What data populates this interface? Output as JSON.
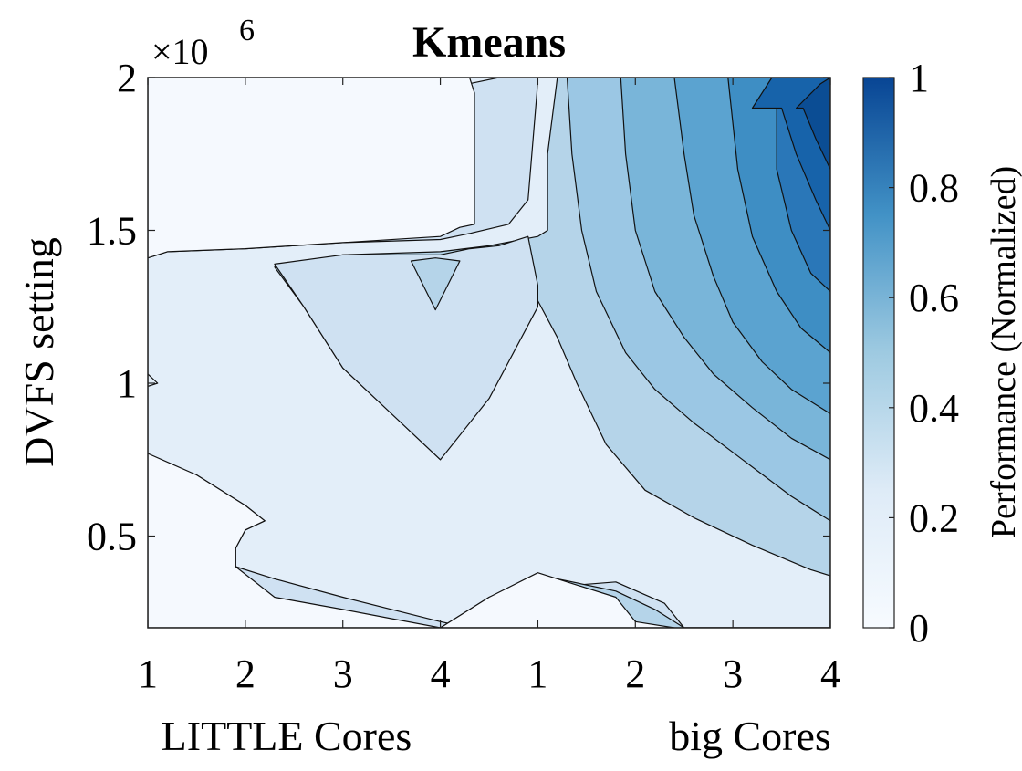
{
  "chart_data": {
    "type": "contour",
    "title": "Kmeans",
    "xlabel_left": "LITTLE Cores",
    "xlabel_right": "big Cores",
    "ylabel": "DVFS setting",
    "y_exponent": "×10",
    "y_exponent_power": "6",
    "xticks": [
      {
        "x": 0,
        "label": "1"
      },
      {
        "x": 1,
        "label": "2"
      },
      {
        "x": 2,
        "label": "3"
      },
      {
        "x": 3,
        "label": "4"
      },
      {
        "x": 4,
        "label": "1"
      },
      {
        "x": 5,
        "label": "2"
      },
      {
        "x": 6,
        "label": "3"
      },
      {
        "x": 7,
        "label": "4"
      }
    ],
    "xlim": [
      0,
      7
    ],
    "yticks": [
      {
        "y": 0.5,
        "label": "0.5"
      },
      {
        "y": 1.0,
        "label": "1"
      },
      {
        "y": 1.5,
        "label": "1.5"
      },
      {
        "y": 2.0,
        "label": "2"
      }
    ],
    "ylim": [
      0.2,
      2.0
    ],
    "colorbar": {
      "label": "Performance (Normalized)",
      "range": [
        0,
        1
      ],
      "ticks": [
        {
          "v": 0,
          "label": "0"
        },
        {
          "v": 0.2,
          "label": "0.2"
        },
        {
          "v": 0.4,
          "label": "0.4"
        },
        {
          "v": 0.6,
          "label": "0.6"
        },
        {
          "v": 0.8,
          "label": "0.8"
        },
        {
          "v": 1.0,
          "label": "1"
        }
      ],
      "colors": [
        "#f7fbff",
        "#deebf7",
        "#9ecae1",
        "#4292c6",
        "#084594"
      ]
    },
    "levels": [
      {
        "value": 0.0,
        "color": "#f5f9fe"
      },
      {
        "value": 0.1,
        "color": "#e3eef9"
      },
      {
        "value": 0.2,
        "color": "#cfe1f2"
      },
      {
        "value": 0.3,
        "color": "#b5d4e9"
      },
      {
        "value": 0.4,
        "color": "#9bc7e4"
      },
      {
        "value": 0.5,
        "color": "#79b5d9"
      },
      {
        "value": 0.6,
        "color": "#5ba3d0"
      },
      {
        "value": 0.7,
        "color": "#3e8ec4"
      },
      {
        "value": 0.8,
        "color": "#2a77b8"
      },
      {
        "value": 0.9,
        "color": "#1763aa"
      },
      {
        "value": 1.0,
        "color": "#0b4d94"
      }
    ],
    "regions": [
      {
        "level": 0.1,
        "points": [
          [
            0,
            2.0
          ],
          [
            3.3,
            2.0
          ],
          [
            3.5,
            2.0
          ],
          [
            3.8,
            2.0
          ],
          [
            4.3,
            2.0
          ],
          [
            7,
            2.0
          ],
          [
            7,
            0.2
          ],
          [
            0,
            0.2
          ]
        ]
      },
      {
        "level": 0.2,
        "points": [
          [
            0,
            1.41
          ],
          [
            0.2,
            1.43
          ],
          [
            1,
            1.44
          ],
          [
            2,
            1.46
          ],
          [
            3,
            1.47
          ],
          [
            3.3,
            1.49
          ],
          [
            3.7,
            1.52
          ],
          [
            3.9,
            1.6
          ],
          [
            3.99,
            1.95
          ],
          [
            4,
            2.0
          ],
          [
            7,
            2.0
          ],
          [
            7,
            0.2
          ],
          [
            0,
            0.2
          ],
          [
            0,
            0.75
          ],
          [
            0.5,
            0.7
          ],
          [
            1,
            0.6
          ],
          [
            1.2,
            0.55
          ],
          [
            1,
            0.52
          ],
          [
            0.9,
            0.46
          ],
          [
            0.9,
            0.4
          ],
          [
            1.3,
            0.36
          ],
          [
            2,
            0.3
          ],
          [
            3,
            0.22
          ],
          [
            3.3,
            0.2
          ],
          [
            3.5,
            0.26
          ],
          [
            4,
            0.33
          ],
          [
            4.8,
            0.35
          ],
          [
            5.3,
            0.28
          ],
          [
            5.5,
            0.2
          ],
          [
            7,
            0.2
          ],
          [
            7,
            2.0
          ],
          [
            4,
            2.0
          ],
          [
            3.99,
            2.0
          ],
          [
            3.6,
            2.0
          ],
          [
            3.3,
            1.98
          ],
          [
            0,
            1.98
          ]
        ]
      },
      {
        "level": 0.3,
        "points": [
          [
            4.0,
            2.0
          ],
          [
            7,
            2.0
          ],
          [
            7,
            0.2
          ],
          [
            5.5,
            0.2
          ],
          [
            5.2,
            0.26
          ],
          [
            4.8,
            0.32
          ],
          [
            4.2,
            0.36
          ],
          [
            3.5,
            0.3
          ],
          [
            3.0,
            0.2
          ],
          [
            7,
            0.2
          ],
          [
            7,
            0.37
          ],
          [
            6.8,
            0.39
          ],
          [
            6.2,
            0.47
          ],
          [
            5.6,
            0.56
          ],
          [
            5.1,
            0.65
          ],
          [
            4.7,
            0.8
          ],
          [
            4.4,
            1.0
          ],
          [
            4.2,
            1.15
          ],
          [
            4.0,
            1.27
          ],
          [
            3.9,
            1.25
          ],
          [
            3.3,
            1.0
          ],
          [
            3.0,
            0.75
          ],
          [
            2.5,
            0.9
          ],
          [
            2.0,
            1.05
          ],
          [
            1.6,
            1.25
          ],
          [
            1.3,
            1.38
          ],
          [
            2.0,
            1.42
          ],
          [
            3.0,
            1.43
          ],
          [
            3.5,
            1.45
          ],
          [
            4.0,
            1.48
          ],
          [
            4.1,
            1.5
          ],
          [
            4.1,
            1.75
          ],
          [
            4.2,
            2.0
          ]
        ]
      },
      {
        "level": 0.4,
        "points": [
          [
            4.3,
            2.0
          ],
          [
            7,
            2.0
          ],
          [
            7,
            0.55
          ],
          [
            6.6,
            0.63
          ],
          [
            6.1,
            0.75
          ],
          [
            5.6,
            0.87
          ],
          [
            5.2,
            0.98
          ],
          [
            4.9,
            1.1
          ],
          [
            4.6,
            1.3
          ],
          [
            4.45,
            1.5
          ],
          [
            4.35,
            1.75
          ],
          [
            4.3,
            2.0
          ]
        ]
      },
      {
        "level": 0.5,
        "points": [
          [
            4.85,
            2.0
          ],
          [
            7,
            2.0
          ],
          [
            7,
            0.75
          ],
          [
            6.6,
            0.82
          ],
          [
            6.2,
            0.92
          ],
          [
            5.8,
            1.03
          ],
          [
            5.5,
            1.15
          ],
          [
            5.2,
            1.3
          ],
          [
            5.0,
            1.5
          ],
          [
            4.9,
            1.75
          ],
          [
            4.85,
            2.0
          ]
        ]
      },
      {
        "level": 0.6,
        "points": [
          [
            5.4,
            2.0
          ],
          [
            7,
            2.0
          ],
          [
            7,
            0.9
          ],
          [
            6.6,
            0.98
          ],
          [
            6.3,
            1.07
          ],
          [
            6.0,
            1.2
          ],
          [
            5.8,
            1.35
          ],
          [
            5.6,
            1.55
          ],
          [
            5.5,
            1.75
          ],
          [
            5.4,
            2.0
          ]
        ]
      },
      {
        "level": 0.7,
        "points": [
          [
            5.95,
            2.0
          ],
          [
            7,
            2.0
          ],
          [
            7,
            1.1
          ],
          [
            6.7,
            1.18
          ],
          [
            6.45,
            1.3
          ],
          [
            6.2,
            1.48
          ],
          [
            6.05,
            1.7
          ],
          [
            5.95,
            2.0
          ]
        ]
      },
      {
        "level": 0.8,
        "points": [
          [
            6.45,
            2.0
          ],
          [
            7,
            2.0
          ],
          [
            7,
            1.3
          ],
          [
            6.8,
            1.36
          ],
          [
            6.6,
            1.5
          ],
          [
            6.45,
            1.7
          ],
          [
            6.45,
            2.0
          ]
        ]
      },
      {
        "level": 0.9,
        "points": [
          [
            6.2,
            1.9
          ],
          [
            6.4,
            2.0
          ],
          [
            7,
            2.0
          ],
          [
            7,
            1.5
          ],
          [
            6.85,
            1.6
          ],
          [
            6.65,
            1.75
          ],
          [
            6.5,
            1.9
          ],
          [
            6.35,
            1.9
          ]
        ]
      },
      {
        "level": 1.0,
        "points": [
          [
            6.65,
            1.9
          ],
          [
            6.9,
            1.98
          ],
          [
            7,
            2.0
          ],
          [
            7,
            1.7
          ],
          [
            6.85,
            1.8
          ],
          [
            6.72,
            1.9
          ]
        ]
      }
    ],
    "overlays": [
      {
        "level": 0.0,
        "points": [
          [
            0,
            2.0
          ],
          [
            3.3,
            2.0
          ],
          [
            3.35,
            1.95
          ],
          [
            3.35,
            1.52
          ],
          [
            3.2,
            1.51
          ],
          [
            3.0,
            1.48
          ],
          [
            2.0,
            1.46
          ],
          [
            1.0,
            1.44
          ],
          [
            0.2,
            1.43
          ],
          [
            0,
            1.41
          ]
        ]
      },
      {
        "level": 0.1,
        "points": [
          [
            0,
            1.03
          ],
          [
            0.1,
            1.0
          ],
          [
            0,
            0.99
          ]
        ]
      },
      {
        "level": 0.2,
        "points": [
          [
            1.3,
            1.39
          ],
          [
            2.0,
            1.42
          ],
          [
            3.0,
            1.42
          ],
          [
            3.3,
            1.44
          ],
          [
            3.6,
            1.45
          ],
          [
            3.9,
            1.48
          ],
          [
            4.0,
            1.32
          ],
          [
            4.0,
            1.25
          ],
          [
            3.5,
            0.95
          ],
          [
            3.0,
            0.75
          ],
          [
            2.5,
            0.9
          ],
          [
            2.0,
            1.05
          ],
          [
            1.6,
            1.25
          ]
        ]
      },
      {
        "level": 0.3,
        "points": [
          [
            2.7,
            1.4
          ],
          [
            2.95,
            1.41
          ],
          [
            3.2,
            1.4
          ],
          [
            2.95,
            1.24
          ]
        ]
      },
      {
        "level": 0.0,
        "points": [
          [
            0,
            0.2
          ],
          [
            3.0,
            0.2
          ],
          [
            2.5,
            0.23
          ],
          [
            2.0,
            0.26
          ],
          [
            1.3,
            0.3
          ],
          [
            0.9,
            0.4
          ],
          [
            0.9,
            0.46
          ],
          [
            1.0,
            0.52
          ],
          [
            1.2,
            0.55
          ],
          [
            1.0,
            0.6
          ],
          [
            0.5,
            0.7
          ],
          [
            0,
            0.77
          ]
        ]
      },
      {
        "level": 0.0,
        "points": [
          [
            3.0,
            0.2
          ],
          [
            3.5,
            0.3
          ],
          [
            4.0,
            0.38
          ],
          [
            4.3,
            0.35
          ],
          [
            4.8,
            0.3
          ],
          [
            5.0,
            0.22
          ],
          [
            5.4,
            0.2
          ]
        ]
      }
    ]
  }
}
